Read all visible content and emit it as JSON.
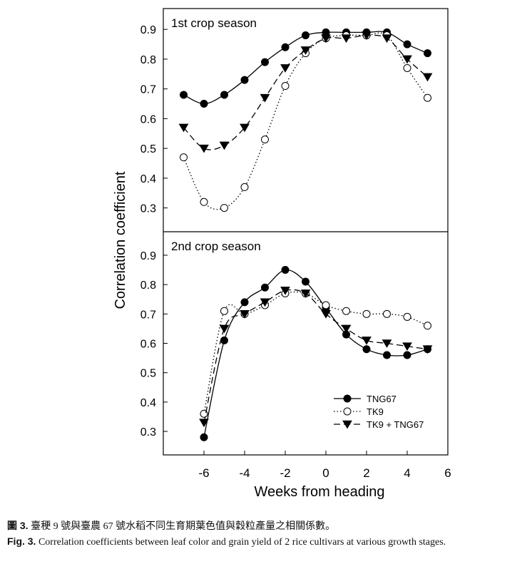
{
  "chart_data": {
    "type": "line",
    "ylabel": "Correlation coefficient",
    "xlabel": "Weeks from heading",
    "xlim": [
      -8,
      6
    ],
    "x_ticks": [
      -6,
      -4,
      -2,
      0,
      2,
      4,
      6
    ],
    "x_tick_labels": [
      "-6",
      "-4",
      "-2",
      "0",
      "2",
      "4",
      "6"
    ],
    "legend": {
      "placement": "bottom-right",
      "entries": [
        "TNG67",
        "TK9",
        "TK9 + TNG67"
      ]
    },
    "panels": [
      {
        "title": "1st crop season",
        "ylim": [
          0.22,
          0.97
        ],
        "y_ticks": [
          0.3,
          0.4,
          0.5,
          0.6,
          0.7,
          0.8,
          0.9
        ],
        "y_tick_labels": [
          "0.3",
          "0.4",
          "0.5",
          "0.6",
          "0.7",
          "0.8",
          "0.9"
        ],
        "series": [
          {
            "name": "TNG67",
            "marker": "filled-circle",
            "line": "solid",
            "x": [
              -7,
              -6,
              -5,
              -4,
              -3,
              -2,
              -1,
              0,
              1,
              2,
              3,
              4,
              5
            ],
            "values": [
              0.68,
              0.65,
              0.68,
              0.73,
              0.79,
              0.84,
              0.88,
              0.89,
              0.89,
              0.89,
              0.89,
              0.85,
              0.82
            ]
          },
          {
            "name": "TK9",
            "marker": "open-circle",
            "line": "dotted",
            "x": [
              -7,
              -6,
              -5,
              -4,
              -3,
              -2,
              -1,
              0,
              1,
              2,
              3,
              4,
              5
            ],
            "values": [
              0.47,
              0.32,
              0.3,
              0.37,
              0.53,
              0.71,
              0.82,
              0.87,
              0.88,
              0.88,
              0.88,
              0.77,
              0.67
            ]
          },
          {
            "name": "TK9 + TNG67",
            "marker": "filled-triangle-down",
            "line": "dashed",
            "x": [
              -7,
              -6,
              -5,
              -4,
              -3,
              -2,
              -1,
              0,
              1,
              2,
              3,
              4,
              5
            ],
            "values": [
              0.57,
              0.5,
              0.51,
              0.57,
              0.67,
              0.77,
              0.83,
              0.87,
              0.87,
              0.88,
              0.87,
              0.8,
              0.74
            ]
          }
        ]
      },
      {
        "title": "2nd crop season",
        "ylim": [
          0.22,
          0.98
        ],
        "y_ticks": [
          0.3,
          0.4,
          0.5,
          0.6,
          0.7,
          0.8,
          0.9
        ],
        "y_tick_labels": [
          "0.3",
          "0.4",
          "0.5",
          "0.6",
          "0.7",
          "0.8",
          "0.9"
        ],
        "series": [
          {
            "name": "TNG67",
            "marker": "filled-circle",
            "line": "solid",
            "x": [
              -6,
              -5,
              -4,
              -3,
              -2,
              -1,
              0,
              1,
              2,
              3,
              4,
              5
            ],
            "values": [
              0.28,
              0.61,
              0.74,
              0.79,
              0.85,
              0.81,
              0.72,
              0.63,
              0.58,
              0.56,
              0.56,
              0.58
            ]
          },
          {
            "name": "TK9",
            "marker": "open-circle",
            "line": "dotted",
            "x": [
              -6,
              -5,
              -4,
              -3,
              -2,
              -1,
              0,
              1,
              2,
              3,
              4,
              5
            ],
            "values": [
              0.36,
              0.71,
              0.7,
              0.73,
              0.77,
              0.77,
              0.73,
              0.71,
              0.7,
              0.7,
              0.69,
              0.66
            ]
          },
          {
            "name": "TK9 + TNG67",
            "marker": "filled-triangle-down",
            "line": "dashed",
            "x": [
              -6,
              -5,
              -4,
              -3,
              -2,
              -1,
              0,
              1,
              2,
              3,
              4,
              5
            ],
            "values": [
              0.33,
              0.65,
              0.7,
              0.74,
              0.78,
              0.77,
              0.7,
              0.65,
              0.61,
              0.6,
              0.59,
              0.58
            ]
          }
        ]
      }
    ]
  },
  "caption": {
    "line1_label": "圖 3.",
    "line1_text": "臺稉 9 號與臺農 67 號水稻不同生育期葉色值與穀粒產量之相關係數。",
    "line2_label": "Fig. 3.",
    "line2_text": "Correlation coefficients between leaf color and grain yield of 2 rice cultivars at various growth stages."
  }
}
